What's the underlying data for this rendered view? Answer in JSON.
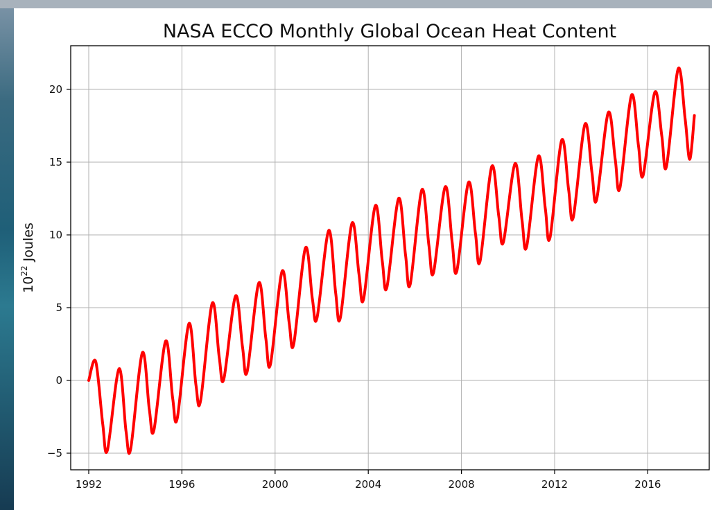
{
  "chart_data": {
    "type": "line",
    "title": "NASA ECCO Monthly Global Ocean Heat Content",
    "xlabel": "",
    "ylabel": "10²² Joules",
    "ylabel_base": "10",
    "ylabel_exponent": "22",
    "ylabel_unit": "Joules",
    "xlim": [
      1991.85,
      2018.5
    ],
    "ylim": [
      -5.5,
      23
    ],
    "xticks": [
      1992,
      1996,
      2000,
      2004,
      2008,
      2012,
      2016
    ],
    "xtick_labels": [
      "1992",
      "1996",
      "2000",
      "2004",
      "2008",
      "2012",
      "2016"
    ],
    "yticks": [
      -5,
      0,
      5,
      10,
      15,
      20
    ],
    "ytick_labels": [
      "−5",
      "0",
      "5",
      "10",
      "15",
      "20"
    ],
    "grid": true,
    "line_color": "#ff0000",
    "series": [
      {
        "x": [
          1992.0,
          1992.3,
          1992.6,
          1992.8,
          1993.3,
          1993.6,
          1993.8,
          1994.3,
          1994.6,
          1994.8,
          1995.3,
          1995.6,
          1995.8,
          1996.3,
          1996.6,
          1996.8,
          1997.3,
          1997.6,
          1997.8,
          1998.3,
          1998.6,
          1998.8,
          1999.3,
          1999.6,
          1999.8,
          2000.3,
          2000.6,
          2000.8,
          2001.3,
          2001.6,
          2001.8,
          2002.3,
          2002.6,
          2002.8,
          2003.3,
          2003.6,
          2003.8,
          2004.3,
          2004.6,
          2004.8,
          2005.3,
          2005.6,
          2005.8,
          2006.3,
          2006.6,
          2006.8,
          2007.3,
          2007.6,
          2007.8,
          2008.3,
          2008.6,
          2008.8,
          2009.3,
          2009.6,
          2009.8,
          2010.3,
          2010.6,
          2010.8,
          2011.3,
          2011.6,
          2011.8,
          2012.3,
          2012.6,
          2012.8,
          2013.3,
          2013.6,
          2013.8,
          2014.3,
          2014.6,
          2014.8,
          2015.3,
          2015.6,
          2015.8,
          2016.3,
          2016.6,
          2016.8,
          2017.3,
          2017.6,
          2017.8,
          2018.0
        ],
        "values": [
          0.0,
          1.3,
          -3.0,
          -4.8,
          0.8,
          -3.5,
          -4.7,
          1.9,
          -2.0,
          -3.4,
          2.7,
          -1.2,
          -2.6,
          3.9,
          -0.3,
          -1.4,
          5.3,
          1.6,
          0.1,
          5.8,
          2.3,
          0.6,
          6.7,
          2.9,
          1.1,
          7.5,
          4.0,
          2.5,
          9.1,
          5.6,
          4.3,
          10.3,
          6.0,
          4.3,
          10.8,
          7.3,
          5.6,
          12.0,
          8.2,
          6.4,
          12.5,
          8.6,
          6.6,
          13.1,
          9.3,
          7.4,
          13.3,
          9.5,
          7.5,
          13.6,
          10.1,
          8.2,
          14.7,
          11.3,
          9.5,
          14.9,
          11.0,
          9.2,
          15.4,
          11.8,
          9.8,
          16.5,
          13.1,
          11.2,
          17.6,
          14.3,
          12.4,
          18.4,
          15.2,
          13.2,
          19.6,
          16.1,
          14.1,
          19.8,
          16.8,
          14.7,
          21.4,
          18.0,
          15.2,
          18.2
        ]
      }
    ]
  }
}
